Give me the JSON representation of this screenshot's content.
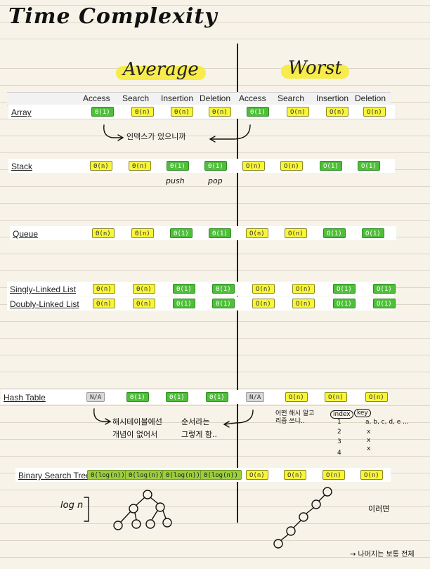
{
  "title": "Time Complexity",
  "avg_heading": "Average",
  "worst_heading": "Worst",
  "headers": [
    "Access",
    "Search",
    "Insertion",
    "Deletion",
    "Access",
    "Search",
    "Insertion",
    "Deletion"
  ],
  "rows": [
    {
      "label": "Array",
      "cells": [
        "Θ(1)",
        "Θ(n)",
        "Θ(n)",
        "Θ(n)",
        "Θ(1)",
        "O(n)",
        "O(n)",
        "O(n)"
      ]
    },
    {
      "label": "Stack",
      "cells": [
        "Θ(n)",
        "Θ(n)",
        "Θ(1)",
        "Θ(1)",
        "O(n)",
        "O(n)",
        "O(1)",
        "O(1)"
      ]
    },
    {
      "label": "Queue",
      "cells": [
        "Θ(n)",
        "Θ(n)",
        "Θ(1)",
        "Θ(1)",
        "O(n)",
        "O(n)",
        "O(1)",
        "O(1)"
      ]
    },
    {
      "label": "Singly-Linked List",
      "cells": [
        "Θ(n)",
        "Θ(n)",
        "Θ(1)",
        "Θ(1)",
        "O(n)",
        "O(n)",
        "O(1)",
        "O(1)"
      ]
    },
    {
      "label": "Doubly-Linked List",
      "cells": [
        "Θ(n)",
        "Θ(n)",
        "Θ(1)",
        "Θ(1)",
        "O(n)",
        "O(n)",
        "O(1)",
        "O(1)"
      ]
    },
    {
      "label": "Hash Table",
      "cells": [
        "N/A",
        "Θ(1)",
        "Θ(1)",
        "Θ(1)",
        "N/A",
        "O(n)",
        "O(n)",
        "O(n)"
      ]
    },
    {
      "label": "Binary Search Tree",
      "cells": [
        "Θ(log(n))",
        "Θ(log(n))",
        "Θ(log(n))",
        "Θ(log(n))",
        "O(n)",
        "O(n)",
        "O(n)",
        "O(n)"
      ]
    }
  ],
  "notes": {
    "array_note": "인덱스가 있으니까",
    "push": "push",
    "pop": "pop",
    "hash_note_1": "해시테이블에선",
    "hash_note_2": "개념이 없어서",
    "hash_note_3": "순서라는",
    "hash_note_4": "그렇게 함..",
    "hash_worst_note": "어떤 해시 알고리즘 쓰냐..",
    "index_label": "index",
    "key_label": "key",
    "key_values": "a, b, c, d, e ...",
    "idx_values": [
      "1",
      "2",
      "3",
      "4"
    ],
    "x_marks": [
      "x",
      "x",
      "x"
    ],
    "logn": "log n",
    "bst_worst_note": "이러면",
    "bst_bottom_note": "→ 나머지는 보통 전체"
  },
  "colors": {
    "yellow": "#f8f53a",
    "green": "#4fbf3a",
    "lightgreen": "#9ccd3e",
    "gray": "#d9d9d9",
    "highlighter": "#f7ea3b"
  }
}
